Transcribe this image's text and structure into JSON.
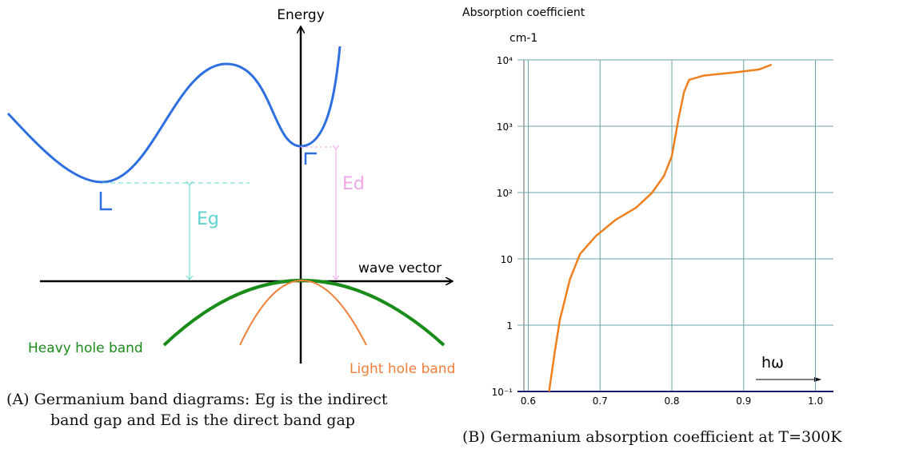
{
  "diagram": {
    "y_axis_label": "Energy",
    "x_axis_label": "wave vector",
    "indirect_gap_label": "Eg",
    "direct_gap_label": "Ed",
    "heavy_hole_label": "Heavy hole band",
    "light_hole_label": "Light hole band",
    "caption": [
      "(A) Germanium band diagrams: Eg is the indirect",
      "band gap and Ed is the direct band gap"
    ]
  },
  "chart_data": {
    "type": "line",
    "ylabel": "Absorption coefficient",
    "yunit": "cm-1",
    "annotation": "hω",
    "caption": "(B) Germanium absorption coefficient at T=300K",
    "x": [
      0.629,
      0.637,
      0.644,
      0.658,
      0.672,
      0.694,
      0.722,
      0.75,
      0.772,
      0.789,
      0.8,
      0.809,
      0.817,
      0.824,
      0.844,
      0.889,
      0.922,
      0.939
    ],
    "series": [
      {
        "color": "#f07f1e",
        "values": [
          0.1,
          0.4,
          1.2,
          4.9,
          11.8,
          22,
          39,
          59,
          98,
          178,
          355,
          1260,
          3300,
          5000,
          5800,
          6500,
          7200,
          8500
        ]
      }
    ],
    "xlim": [
      0.585,
      1.025
    ],
    "xticks": [
      0.6,
      0.7,
      0.8,
      0.9,
      {
        "value": 1,
        "label": "1.0"
      }
    ],
    "ylim": [
      0.1,
      10000
    ],
    "yticks": [
      {
        "value": 0.1,
        "label": "10⁻¹"
      },
      1,
      10,
      {
        "value": 100,
        "label": "10²"
      },
      {
        "value": 1000,
        "label": "10³"
      },
      {
        "value": 10000,
        "label": "10⁴"
      }
    ],
    "ylog": true,
    "grid": true,
    "grid_color": "#6aa3a8"
  }
}
